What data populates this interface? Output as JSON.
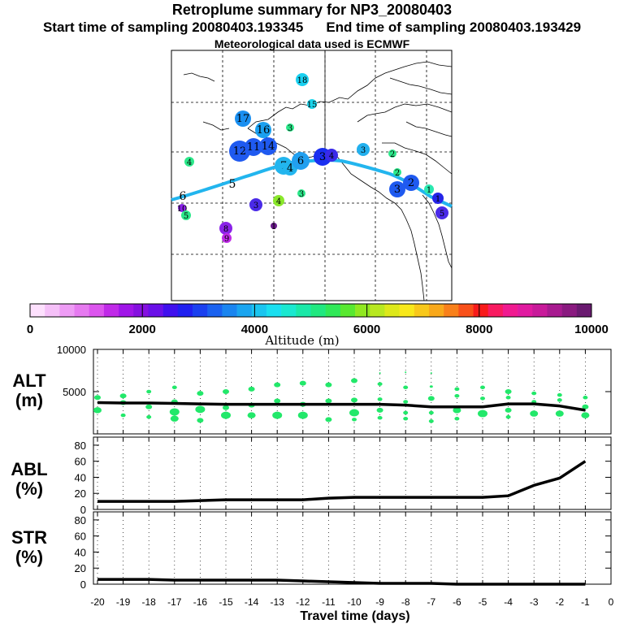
{
  "header": {
    "title": "Retroplume summary for NP3_20080403",
    "start_label": "Start time of sampling 20080403.193345",
    "end_label": "End time of sampling 20080403.193429",
    "met_label": "Meteorological data used is ECMWF"
  },
  "colors": {
    "track": "#22b5ee",
    "scatter": "#22e86a",
    "line": "#000000"
  },
  "chart_data": [
    {
      "type": "scatter",
      "name": "retroplume-map",
      "description_labels": "numbered cluster centroids on map (days back)",
      "points": [
        {
          "label": "18",
          "color": "#1ad0f0",
          "r": 8
        },
        {
          "label": "15",
          "color": "#19d3ea",
          "r": 6
        },
        {
          "label": "17",
          "color": "#1a8ff0",
          "r": 10
        },
        {
          "label": "16",
          "color": "#1aa0f0",
          "r": 10
        },
        {
          "label": "3",
          "color": "#2be88a",
          "r": 5
        },
        {
          "label": "12",
          "color": "#1f5af0",
          "r": 13
        },
        {
          "label": "11",
          "color": "#1f5af0",
          "r": 11
        },
        {
          "label": "14",
          "color": "#1f5af0",
          "r": 11
        },
        {
          "label": "4",
          "color": "#2be88a",
          "r": 6
        },
        {
          "label": "7",
          "color": "#22b5ee",
          "r": 11
        },
        {
          "label": "4",
          "color": "#22b5ee",
          "r": 9
        },
        {
          "label": "6",
          "color": "#22a0f0",
          "r": 11
        },
        {
          "label": "3",
          "color": "#1a2ff0",
          "r": 11
        },
        {
          "label": "4",
          "color": "#3a2ae8",
          "r": 8
        },
        {
          "label": "3",
          "color": "#22b0ee",
          "r": 8
        },
        {
          "label": "2",
          "color": "#2be88a",
          "r": 5
        },
        {
          "label": "2",
          "color": "#2be88a",
          "r": 5
        },
        {
          "label": "2",
          "color": "#1f5af0",
          "r": 10
        },
        {
          "label": "3",
          "color": "#1f5af0",
          "r": 10
        },
        {
          "label": "1",
          "color": "#2be8b0",
          "r": 6
        },
        {
          "label": "1",
          "color": "#2525e8",
          "r": 7
        },
        {
          "label": "5",
          "color": "#4a2ae8",
          "r": 8
        },
        {
          "label": "4",
          "color": "#8ae82b",
          "r": 7
        },
        {
          "label": "3",
          "color": "#2be88a",
          "r": 5
        },
        {
          "label": "3",
          "color": "#4a2ae8",
          "r": 8
        },
        {
          "label": "10",
          "color": "#8a22e8",
          "r": 5
        },
        {
          "label": "5",
          "color": "#2be88a",
          "r": 6
        },
        {
          "label": "8",
          "color": "#8a22e8",
          "r": 8
        },
        {
          "label": "9",
          "color": "#c02ae8",
          "r": 6
        },
        {
          "label": "1",
          "color": "#6a1a8a",
          "r": 4
        },
        {
          "label": "6",
          "color": "#22b5ee",
          "r": 0
        },
        {
          "label": "5",
          "color": "#22b5ee",
          "r": 0
        }
      ]
    },
    {
      "type": "heatmap",
      "name": "altitude-colorbar",
      "xlabel": "Altitude (m)",
      "ticks": [
        0,
        2000,
        4000,
        6000,
        8000,
        10000
      ],
      "range": [
        0,
        10000
      ],
      "colors": [
        "#fde0fd",
        "#f5c0f8",
        "#ee9cf5",
        "#e67af0",
        "#dc55ee",
        "#c02ae8",
        "#a015e8",
        "#8510e0",
        "#6a10e8",
        "#4010ee",
        "#2020f0",
        "#1a40f0",
        "#1a62f0",
        "#1a85f0",
        "#1aa5f0",
        "#1ac5f0",
        "#1adff0",
        "#1ae8d0",
        "#1ae8a8",
        "#20e880",
        "#30e858",
        "#58e830",
        "#90e820",
        "#b8e820",
        "#dde81a",
        "#f8e81a",
        "#f8c81a",
        "#f8a81a",
        "#f8801a",
        "#f8501a",
        "#f81a1a",
        "#f81a60",
        "#f01a90",
        "#e01aa0",
        "#c81a9a",
        "#a81a90",
        "#8a1a80",
        "#6a1a70"
      ]
    },
    {
      "type": "line",
      "name": "alt-panel",
      "ylabel": "ALT (m)",
      "ylabel_line1": "ALT",
      "ylabel_line2": "(m)",
      "ylim": [
        0,
        10000
      ],
      "yticks": [
        "10000",
        "5000"
      ],
      "yticks_values": [
        10000,
        5000
      ],
      "x": [
        -20,
        -19,
        -18,
        -17,
        -16,
        -15,
        -14,
        -13,
        -12,
        -11,
        -10,
        -9,
        -8,
        -7,
        -6,
        -5,
        -4,
        -3,
        -2,
        -1
      ],
      "values": [
        3700,
        3650,
        3650,
        3600,
        3550,
        3500,
        3500,
        3500,
        3500,
        3500,
        3500,
        3500,
        3400,
        3200,
        3200,
        3200,
        3550,
        3550,
        3300,
        2800
      ],
      "scatter": [
        [
          -20,
          4300,
          4
        ],
        [
          -20,
          2800,
          5
        ],
        [
          -19,
          4500,
          4
        ],
        [
          -19,
          3700,
          4
        ],
        [
          -19,
          2200,
          3
        ],
        [
          -18,
          5000,
          3
        ],
        [
          -18,
          3200,
          4
        ],
        [
          -18,
          2000,
          3
        ],
        [
          -17,
          5500,
          3
        ],
        [
          -17,
          3800,
          4
        ],
        [
          -17,
          2600,
          6
        ],
        [
          -17,
          1800,
          5
        ],
        [
          -16,
          4800,
          4
        ],
        [
          -16,
          2900,
          6
        ],
        [
          -16,
          1600,
          4
        ],
        [
          -15,
          5000,
          4
        ],
        [
          -15,
          3100,
          4
        ],
        [
          -15,
          2200,
          6
        ],
        [
          -14,
          5300,
          4
        ],
        [
          -14,
          3400,
          4
        ],
        [
          -14,
          2200,
          5
        ],
        [
          -13,
          5800,
          4
        ],
        [
          -13,
          3900,
          4
        ],
        [
          -13,
          2200,
          6
        ],
        [
          -12,
          6000,
          4
        ],
        [
          -12,
          3500,
          4
        ],
        [
          -12,
          2200,
          6
        ],
        [
          -11,
          5800,
          4
        ],
        [
          -11,
          3900,
          4
        ],
        [
          -11,
          1700,
          4
        ],
        [
          -10,
          6300,
          4
        ],
        [
          -10,
          4000,
          4
        ],
        [
          -10,
          2500,
          6
        ],
        [
          -10,
          1700,
          3
        ],
        [
          -9,
          7200,
          1
        ],
        [
          -9,
          5900,
          3
        ],
        [
          -9,
          4100,
          3
        ],
        [
          -9,
          2800,
          4
        ],
        [
          -9,
          1900,
          3
        ],
        [
          -8,
          7300,
          1
        ],
        [
          -8,
          5500,
          3
        ],
        [
          -8,
          3800,
          3
        ],
        [
          -8,
          2500,
          3
        ],
        [
          -8,
          1800,
          3
        ],
        [
          -7,
          7200,
          1
        ],
        [
          -7,
          5600,
          2
        ],
        [
          -7,
          4200,
          4
        ],
        [
          -7,
          2500,
          3
        ],
        [
          -7,
          1500,
          3
        ],
        [
          -6,
          5300,
          3
        ],
        [
          -6,
          4500,
          3
        ],
        [
          -6,
          2800,
          5
        ],
        [
          -6,
          1800,
          3
        ],
        [
          -5,
          5500,
          3
        ],
        [
          -5,
          4200,
          3
        ],
        [
          -5,
          2400,
          6
        ],
        [
          -4,
          5000,
          4
        ],
        [
          -4,
          4300,
          3
        ],
        [
          -4,
          2800,
          4
        ],
        [
          -4,
          2000,
          3
        ],
        [
          -3,
          4800,
          3
        ],
        [
          -3,
          3800,
          3
        ],
        [
          -3,
          2400,
          5
        ],
        [
          -2,
          4600,
          3
        ],
        [
          -2,
          4000,
          3
        ],
        [
          -2,
          2400,
          5
        ],
        [
          -1,
          4300,
          3
        ],
        [
          -1,
          3200,
          4
        ],
        [
          -1,
          2200,
          5
        ]
      ]
    },
    {
      "type": "line",
      "name": "abl-panel",
      "ylabel": "ABL (%)",
      "ylabel_line1": "ABL",
      "ylabel_line2": "(%)",
      "ylim": [
        0,
        90
      ],
      "yticks": [
        "80",
        "60",
        "40",
        "20",
        "0"
      ],
      "yticks_values": [
        80,
        60,
        40,
        20,
        0
      ],
      "x": [
        -20,
        -19,
        -18,
        -17,
        -16,
        -15,
        -14,
        -13,
        -12,
        -11,
        -10,
        -9,
        -8,
        -7,
        -6,
        -5,
        -4,
        -3,
        -2,
        -1
      ],
      "values": [
        10,
        10,
        10,
        10,
        11,
        12,
        12,
        12,
        12,
        14,
        15,
        15,
        15,
        15,
        15,
        15,
        17,
        30,
        39,
        60
      ]
    },
    {
      "type": "line",
      "name": "str-panel",
      "ylabel": "STR (%)",
      "ylabel_line1": "STR",
      "ylabel_line2": "(%)",
      "ylim": [
        0,
        90
      ],
      "yticks": [
        "80",
        "60",
        "40",
        "20",
        "0"
      ],
      "yticks_values": [
        80,
        60,
        40,
        20,
        0
      ],
      "xlabel": "Travel time (days)",
      "xticks": [
        "-20",
        "-19",
        "-18",
        "-17",
        "-16",
        "-15",
        "-14",
        "-13",
        "-12",
        "-11",
        "-10",
        "-9",
        "-8",
        "-7",
        "-6",
        "-5",
        "-4",
        "-3",
        "-2",
        "-1",
        "0"
      ],
      "xticks_values": [
        -20,
        -19,
        -18,
        -17,
        -16,
        -15,
        -14,
        -13,
        -12,
        -11,
        -10,
        -9,
        -8,
        -7,
        -6,
        -5,
        -4,
        -3,
        -2,
        -1,
        0
      ],
      "x": [
        -20,
        -19,
        -18,
        -17,
        -16,
        -15,
        -14,
        -13,
        -12,
        -11,
        -10,
        -9,
        -8,
        -7,
        -6,
        -5,
        -4,
        -3,
        -2,
        -1
      ],
      "values": [
        6,
        6,
        6,
        5,
        5,
        5,
        5,
        5,
        4,
        3,
        2,
        1,
        1,
        1,
        0,
        0,
        0,
        0,
        0,
        0
      ]
    }
  ]
}
